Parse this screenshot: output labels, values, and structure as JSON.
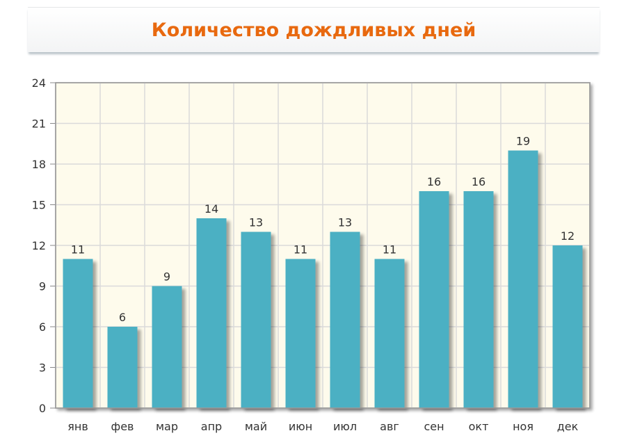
{
  "title": "Количество дождливых дней",
  "colors": {
    "title": "#e8690f",
    "bar": "#4bb0c3",
    "plot_background": "#fefbec",
    "grid": "#dadada"
  },
  "chart_data": {
    "type": "bar",
    "categories": [
      "янв",
      "фев",
      "мар",
      "апр",
      "май",
      "июн",
      "июл",
      "авг",
      "сен",
      "окт",
      "ноя",
      "дек"
    ],
    "values": [
      11,
      6,
      9,
      14,
      13,
      11,
      13,
      11,
      16,
      16,
      19,
      12
    ],
    "ylim": [
      0,
      24
    ],
    "yticks": [
      0,
      3,
      6,
      9,
      12,
      15,
      18,
      21,
      24
    ],
    "grid": true,
    "data_labels": true
  }
}
